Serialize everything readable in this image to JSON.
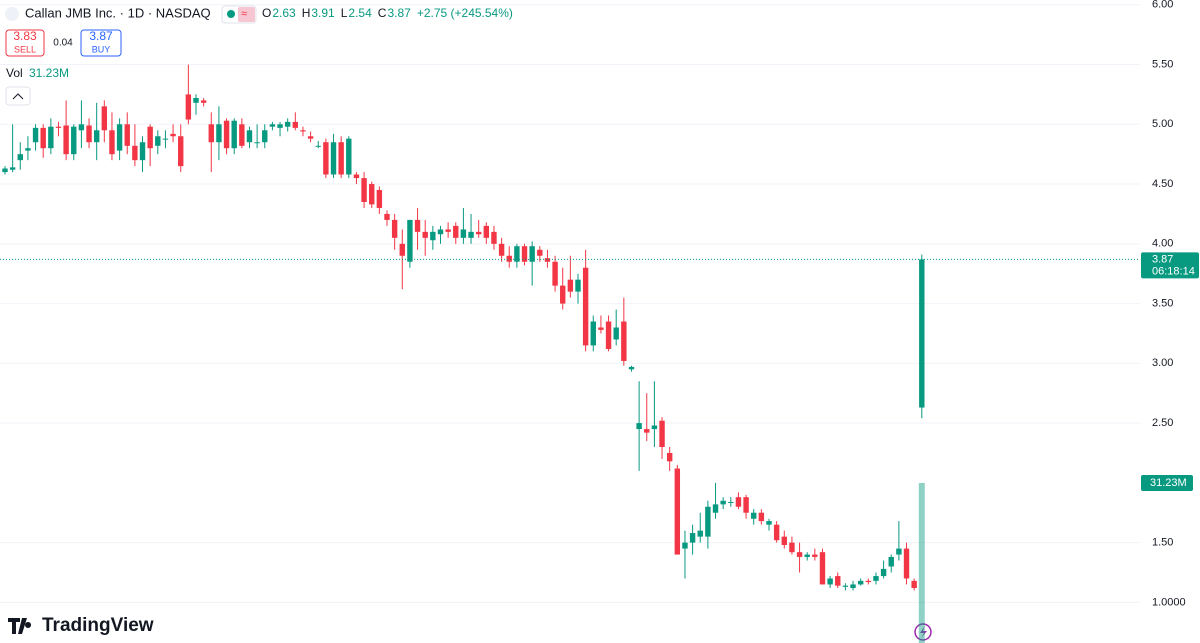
{
  "chart_data": {
    "type": "candlestick",
    "symbol": "Callan JMB Inc. · 1D · NASDAQ",
    "ohlc_labels": [
      "O",
      "H",
      "L",
      "C"
    ],
    "change": "+2.75 (+245.54%)",
    "sell": {
      "label": "SELL",
      "value": 3.83
    },
    "spread": 0.04,
    "buy": {
      "label": "BUY",
      "value": 3.87
    },
    "volume_label": "Vol",
    "volume": {
      "value": 31230000,
      "label": "31.23M"
    },
    "countdown": "06:18:14",
    "brand": "TradingView",
    "up_color": "#089981",
    "down_color": "#f23645",
    "ylim": [
      0.66,
      6.04
    ],
    "yticks": [
      {
        "value": 6,
        "label": "6.00"
      },
      {
        "value": 5.5,
        "label": "5.50"
      },
      {
        "value": 5,
        "label": "5.00"
      },
      {
        "value": 4.5,
        "label": "4.50"
      },
      {
        "value": 4,
        "label": "4.00"
      },
      {
        "value": 3.5,
        "label": "3.50"
      },
      {
        "value": 3,
        "label": "3.00"
      },
      {
        "value": 2.5,
        "label": "2.50"
      },
      {
        "value": 1.5,
        "label": "1.50"
      },
      {
        "value": 1,
        "label": "1.0000"
      }
    ],
    "grid": true,
    "ohlc": [
      [
        4.6,
        4.65,
        4.58,
        4.63
      ],
      [
        4.62,
        5.0,
        4.6,
        4.64
      ],
      [
        4.7,
        4.85,
        4.62,
        4.75
      ],
      [
        4.78,
        4.9,
        4.7,
        4.8
      ],
      [
        4.85,
        5.0,
        4.78,
        4.97
      ],
      [
        4.97,
        5.0,
        4.72,
        4.8
      ],
      [
        4.8,
        5.05,
        4.75,
        4.98
      ],
      [
        4.98,
        5.02,
        4.9,
        4.97
      ],
      [
        4.99,
        5.2,
        4.7,
        4.75
      ],
      [
        4.75,
        5.0,
        4.7,
        4.98
      ],
      [
        4.95,
        5.2,
        4.8,
        5.0
      ],
      [
        4.99,
        5.05,
        4.8,
        4.85
      ],
      [
        4.85,
        5.18,
        4.7,
        4.95
      ],
      [
        5.15,
        5.2,
        4.85,
        4.95
      ],
      [
        4.95,
        5.1,
        4.7,
        4.75
      ],
      [
        4.78,
        5.05,
        4.7,
        5.0
      ],
      [
        5.0,
        5.1,
        4.75,
        4.82
      ],
      [
        4.82,
        5.0,
        4.65,
        4.7
      ],
      [
        4.7,
        4.9,
        4.6,
        4.85
      ],
      [
        4.98,
        5.0,
        4.65,
        4.8
      ],
      [
        4.82,
        4.95,
        4.75,
        4.9
      ],
      [
        4.88,
        4.95,
        4.8,
        4.88
      ],
      [
        4.92,
        5.0,
        4.85,
        4.9
      ],
      [
        4.9,
        5.0,
        4.6,
        4.65
      ],
      [
        5.25,
        5.5,
        5.0,
        5.04
      ],
      [
        5.18,
        5.25,
        5.08,
        5.22
      ],
      [
        5.2,
        5.22,
        5.15,
        5.18
      ],
      [
        5.0,
        5.1,
        4.6,
        4.85
      ],
      [
        4.85,
        5.15,
        4.7,
        5.0
      ],
      [
        5.03,
        5.05,
        4.75,
        4.8
      ],
      [
        4.8,
        5.05,
        4.75,
        5.03
      ],
      [
        5.0,
        5.05,
        4.8,
        4.82
      ],
      [
        4.85,
        4.98,
        4.8,
        4.95
      ],
      [
        4.85,
        5.0,
        4.8,
        4.85
      ],
      [
        4.85,
        5.0,
        4.8,
        4.95
      ],
      [
        4.98,
        5.02,
        4.95,
        5.0
      ],
      [
        4.97,
        5.02,
        4.9,
        5.0
      ],
      [
        4.98,
        5.05,
        4.94,
        5.02
      ],
      [
        5.02,
        5.1,
        4.95,
        4.97
      ],
      [
        4.95,
        4.98,
        4.9,
        4.94
      ],
      [
        4.9,
        4.94,
        4.85,
        4.88
      ],
      [
        4.82,
        4.86,
        4.8,
        4.82
      ],
      [
        4.85,
        4.88,
        4.55,
        4.58
      ],
      [
        4.58,
        4.92,
        4.55,
        4.85
      ],
      [
        4.85,
        4.9,
        4.55,
        4.58
      ],
      [
        4.58,
        4.9,
        4.55,
        4.88
      ],
      [
        4.58,
        4.6,
        4.5,
        4.55
      ],
      [
        4.55,
        4.6,
        4.3,
        4.35
      ],
      [
        4.5,
        4.52,
        4.3,
        4.33
      ],
      [
        4.45,
        4.48,
        4.25,
        4.3
      ],
      [
        4.25,
        4.28,
        4.15,
        4.2
      ],
      [
        4.2,
        4.25,
        3.95,
        4.05
      ],
      [
        4.0,
        4.12,
        3.62,
        3.9
      ],
      [
        3.85,
        4.2,
        3.8,
        4.2
      ],
      [
        4.2,
        4.3,
        3.95,
        4.1
      ],
      [
        4.1,
        4.2,
        3.9,
        4.05
      ],
      [
        4.03,
        4.15,
        3.95,
        4.1
      ],
      [
        4.08,
        4.15,
        4.0,
        4.12
      ],
      [
        4.12,
        4.18,
        4.05,
        4.1
      ],
      [
        4.15,
        4.18,
        4.0,
        4.05
      ],
      [
        4.05,
        4.3,
        4.0,
        4.12
      ],
      [
        4.05,
        4.25,
        4.0,
        4.1
      ],
      [
        4.1,
        4.2,
        4.05,
        4.08
      ],
      [
        4.15,
        4.18,
        4.0,
        4.05
      ],
      [
        4.1,
        4.15,
        3.95,
        4.0
      ],
      [
        4.0,
        4.05,
        3.85,
        3.9
      ],
      [
        3.9,
        3.98,
        3.8,
        3.85
      ],
      [
        3.85,
        4.0,
        3.8,
        3.98
      ],
      [
        3.98,
        4.0,
        3.82,
        3.85
      ],
      [
        3.85,
        4.02,
        3.65,
        3.98
      ],
      [
        3.95,
        3.98,
        3.85,
        3.9
      ],
      [
        3.88,
        3.95,
        3.8,
        3.85
      ],
      [
        3.85,
        3.9,
        3.6,
        3.65
      ],
      [
        3.65,
        3.8,
        3.45,
        3.5
      ],
      [
        3.7,
        3.9,
        3.55,
        3.6
      ],
      [
        3.6,
        3.75,
        3.5,
        3.7
      ],
      [
        3.8,
        3.95,
        3.1,
        3.15
      ],
      [
        3.15,
        3.4,
        3.1,
        3.35
      ],
      [
        3.3,
        3.4,
        3.25,
        3.28
      ],
      [
        3.35,
        3.4,
        3.1,
        3.12
      ],
      [
        3.2,
        3.45,
        3.15,
        3.3
      ],
      [
        3.35,
        3.55,
        2.98,
        3.02
      ],
      [
        2.95,
        2.98,
        2.93,
        2.97
      ],
      [
        2.45,
        2.85,
        2.1,
        2.5
      ],
      [
        2.45,
        2.75,
        2.35,
        2.42
      ],
      [
        2.45,
        2.85,
        2.3,
        2.48
      ],
      [
        2.52,
        2.55,
        2.2,
        2.3
      ],
      [
        2.25,
        2.3,
        2.1,
        2.18
      ],
      [
        2.12,
        2.15,
        1.4,
        1.4
      ],
      [
        1.45,
        1.6,
        1.2,
        1.5
      ],
      [
        1.5,
        1.65,
        1.4,
        1.58
      ],
      [
        1.55,
        1.75,
        1.5,
        1.6
      ],
      [
        1.55,
        1.85,
        1.45,
        1.8
      ],
      [
        1.75,
        2.0,
        1.7,
        1.82
      ],
      [
        1.82,
        1.88,
        1.78,
        1.85
      ],
      [
        1.84,
        1.88,
        1.8,
        1.84
      ],
      [
        1.88,
        1.92,
        1.78,
        1.8
      ],
      [
        1.88,
        1.9,
        1.7,
        1.75
      ],
      [
        1.7,
        1.78,
        1.65,
        1.75
      ],
      [
        1.75,
        1.78,
        1.65,
        1.68
      ],
      [
        1.65,
        1.7,
        1.6,
        1.68
      ],
      [
        1.65,
        1.68,
        1.5,
        1.52
      ],
      [
        1.55,
        1.6,
        1.45,
        1.48
      ],
      [
        1.5,
        1.55,
        1.4,
        1.42
      ],
      [
        1.42,
        1.5,
        1.25,
        1.38
      ],
      [
        1.38,
        1.42,
        1.35,
        1.4
      ],
      [
        1.4,
        1.45,
        1.35,
        1.38
      ],
      [
        1.42,
        1.45,
        1.15,
        1.15
      ],
      [
        1.15,
        1.22,
        1.12,
        1.2
      ],
      [
        1.22,
        1.25,
        1.12,
        1.14
      ],
      [
        1.13,
        1.16,
        1.1,
        1.14
      ],
      [
        1.12,
        1.18,
        1.1,
        1.15
      ],
      [
        1.15,
        1.2,
        1.14,
        1.18
      ],
      [
        1.18,
        1.2,
        1.15,
        1.17
      ],
      [
        1.18,
        1.25,
        1.15,
        1.22
      ],
      [
        1.22,
        1.35,
        1.2,
        1.28
      ],
      [
        1.3,
        1.4,
        1.25,
        1.38
      ],
      [
        1.4,
        1.68,
        1.35,
        1.45
      ],
      [
        1.45,
        1.5,
        1.15,
        1.2
      ],
      [
        1.18,
        1.2,
        1.1,
        1.12
      ],
      [
        2.63,
        3.91,
        2.54,
        3.87
      ]
    ]
  }
}
